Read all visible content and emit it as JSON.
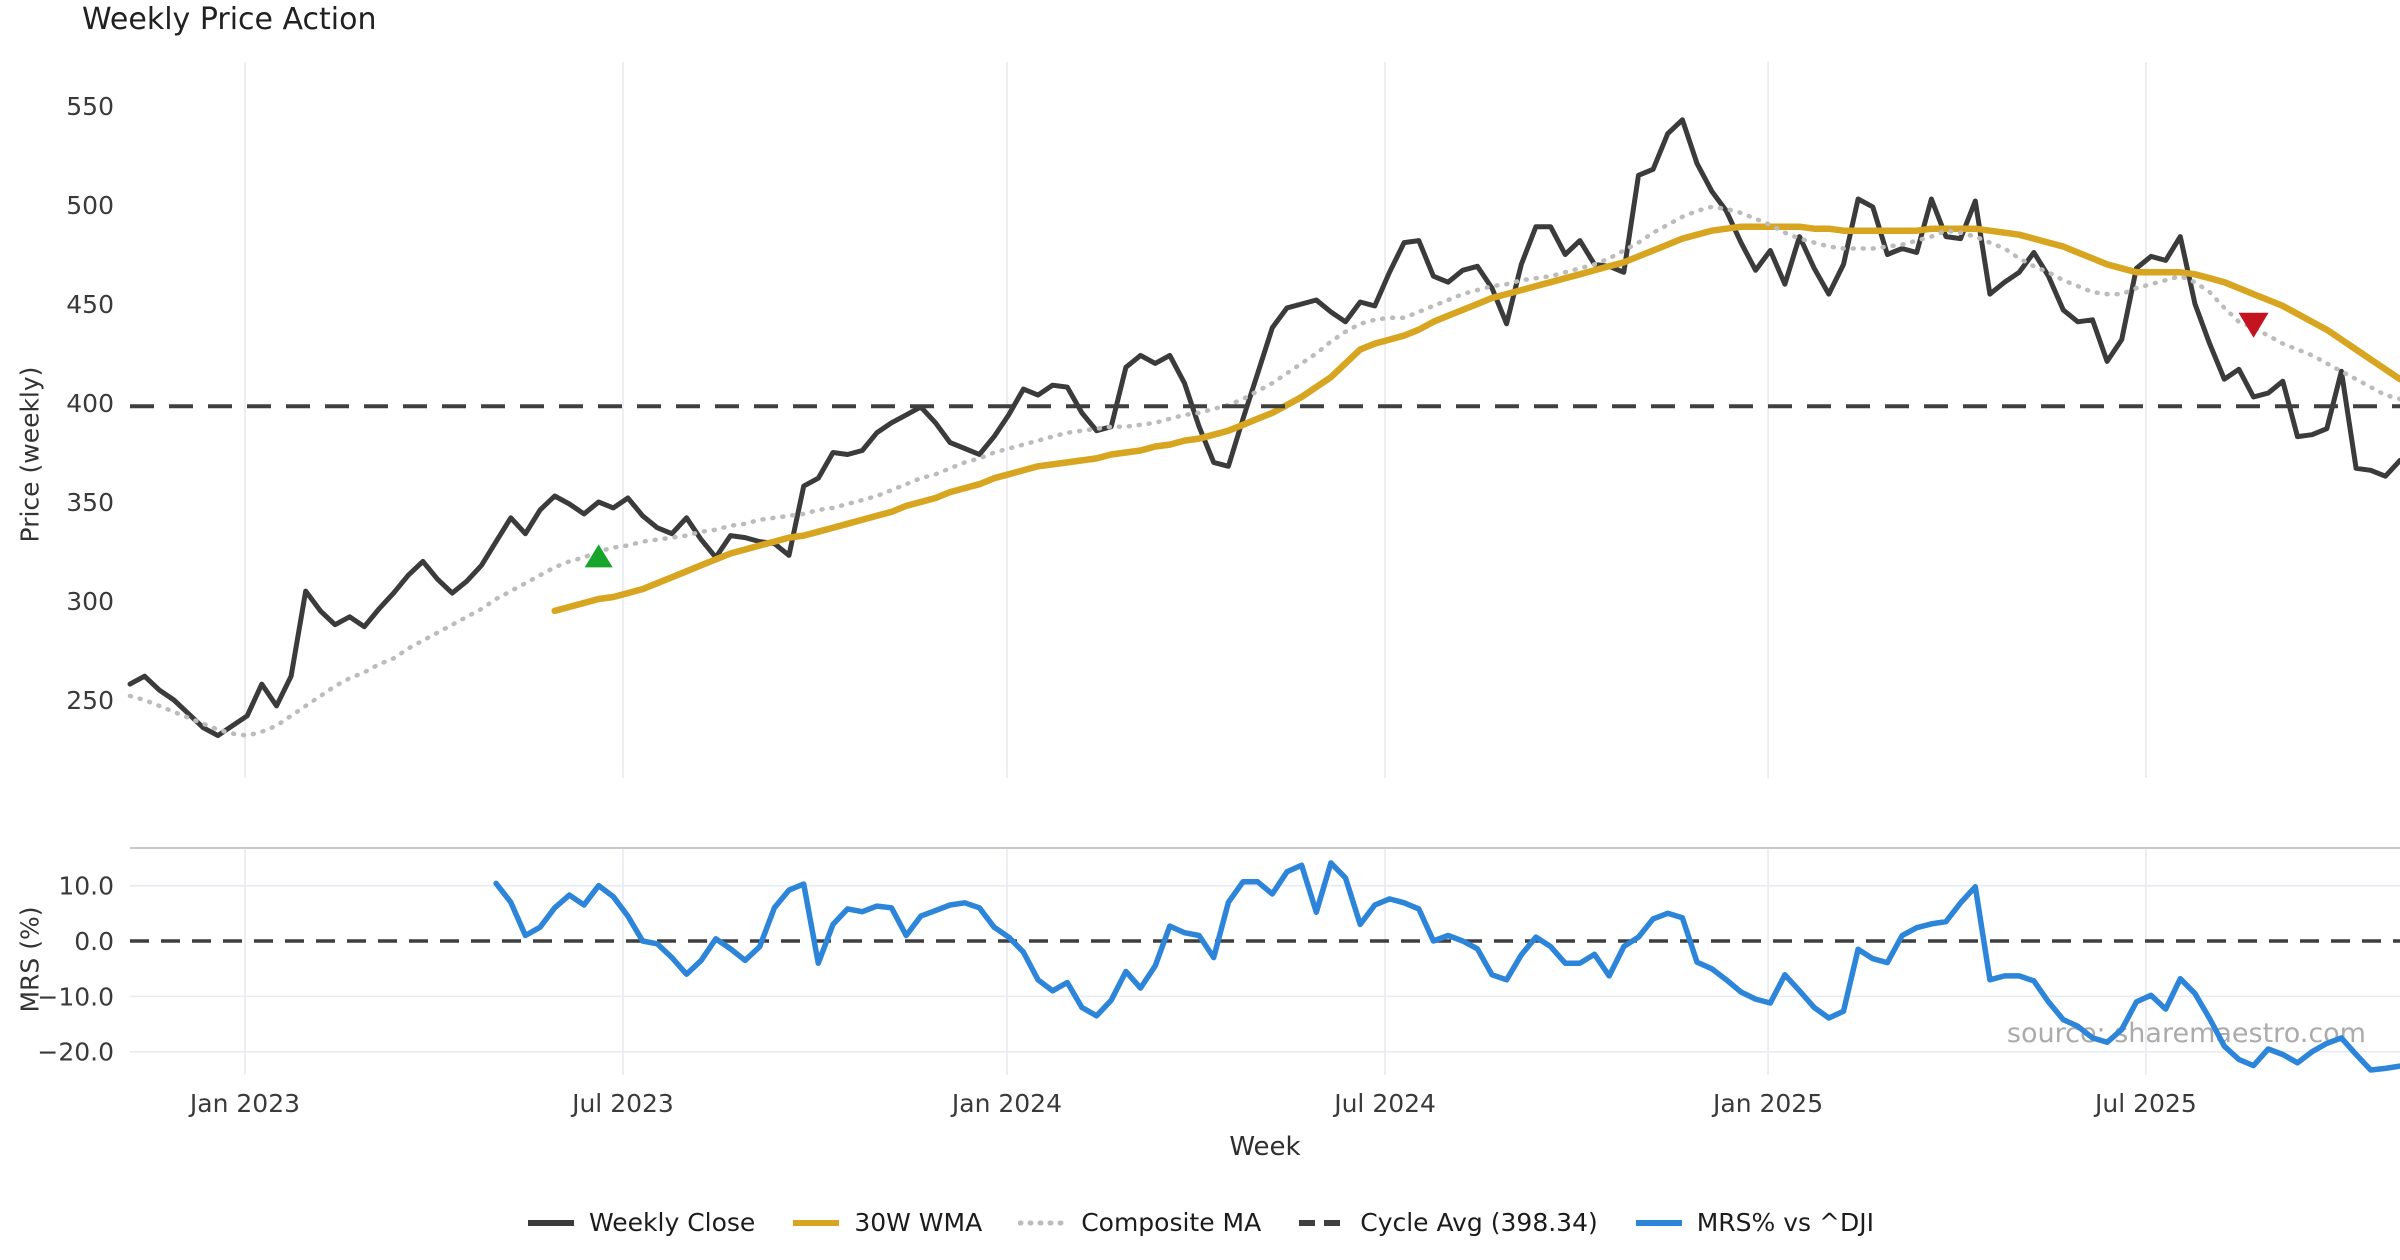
{
  "chart_data": {
    "type": "line",
    "title": "Weekly Price Action",
    "xlabel": "Week",
    "source_text": "source: sharemaestro.com",
    "x_ticks": [
      {
        "label": "Jan 2023",
        "week": 7.85
      },
      {
        "label": "Jul 2023",
        "week": 33.66
      },
      {
        "label": "Jan 2024",
        "week": 59.88
      },
      {
        "label": "Jul 2024",
        "week": 85.7
      },
      {
        "label": "Jan 2025",
        "week": 111.85
      },
      {
        "label": "Jul 2025",
        "week": 137.65
      }
    ],
    "weeks_total": 156,
    "panels": [
      {
        "id": "price",
        "ylabel": "Price (weekly)",
        "ylim": [
          210.6,
          572.2
        ],
        "yticks": [
          {
            "label": "250",
            "value": 250
          },
          {
            "label": "300",
            "value": 300
          },
          {
            "label": "350",
            "value": 350
          },
          {
            "label": "400",
            "value": 400
          },
          {
            "label": "450",
            "value": 450
          },
          {
            "label": "500",
            "value": 500
          },
          {
            "label": "550",
            "value": 550
          }
        ],
        "grid": "vertical"
      },
      {
        "id": "mrs",
        "ylabel": "MRS (%)",
        "ylim": [
          -24.2,
          16.8
        ],
        "yticks": [
          {
            "label": "10.0",
            "value": 10
          },
          {
            "label": "0.0",
            "value": 0
          },
          {
            "label": "−10.0",
            "value": -10
          },
          {
            "label": "−20.0",
            "value": -20
          }
        ],
        "grid": "both",
        "zero_line_dashed": true,
        "top_spine": true
      }
    ],
    "series": [
      {
        "name": "Weekly Close",
        "panel": "price",
        "color": "#3b3b3b",
        "width": 5,
        "style": "solid",
        "start_week": 0,
        "values": [
          258,
          262,
          255,
          250,
          243,
          236,
          232,
          237,
          242,
          258,
          247,
          262,
          305,
          295,
          288,
          292,
          287,
          296,
          304,
          313,
          320,
          311,
          304,
          310,
          318,
          330,
          342,
          334,
          346,
          353,
          349,
          344,
          350,
          347,
          352,
          343,
          337,
          334,
          342,
          331,
          322,
          333,
          332,
          330,
          329,
          323,
          358,
          362,
          375,
          374,
          376,
          385,
          390,
          394,
          398,
          390,
          380,
          377,
          374,
          383,
          394,
          407,
          404,
          409,
          408,
          395,
          386,
          388,
          418,
          424,
          420,
          424,
          410,
          388,
          370,
          368,
          392,
          415,
          438,
          448,
          450,
          452,
          446,
          441,
          451,
          449,
          466,
          481,
          482,
          464,
          461,
          467,
          469,
          458,
          440,
          470,
          489,
          489,
          475,
          482,
          470,
          469,
          466,
          515,
          518,
          536,
          543,
          521,
          507,
          497,
          481,
          467,
          477,
          460,
          484,
          468,
          455,
          470,
          503,
          499,
          475,
          478,
          476,
          503,
          484,
          483,
          502,
          455,
          461,
          466,
          476,
          464,
          447,
          441,
          442,
          421,
          432,
          468,
          474,
          472,
          484,
          450,
          430,
          412,
          417,
          403,
          405,
          411,
          383,
          384,
          387,
          416,
          367,
          366,
          363,
          371
        ]
      },
      {
        "name": "30W WMA",
        "panel": "price",
        "color": "#d7a520",
        "width": 6.5,
        "style": "solid",
        "start_week": 29,
        "values": [
          295,
          297,
          299,
          301,
          302,
          304,
          306,
          309,
          312,
          315,
          318,
          321,
          324,
          326,
          328,
          330,
          332,
          333,
          335,
          337,
          339,
          341,
          343,
          345,
          348,
          350,
          352,
          355,
          357,
          359,
          362,
          364,
          366,
          368,
          369,
          370,
          371,
          372,
          374,
          375,
          376,
          378,
          379,
          381,
          382,
          384,
          386,
          389,
          392,
          395,
          399,
          403,
          408,
          413,
          420,
          427,
          430,
          432,
          434,
          437,
          441,
          444,
          447,
          450,
          453,
          455,
          457,
          459,
          461,
          463,
          465,
          467,
          469,
          471,
          474,
          477,
          480,
          483,
          485,
          487,
          488,
          489,
          489,
          489,
          489,
          489,
          488,
          488,
          487,
          487,
          487,
          487,
          487,
          487,
          488,
          488,
          488,
          488,
          487,
          486,
          485,
          483,
          481,
          479,
          476,
          473,
          470,
          468,
          466,
          466,
          466,
          466,
          465,
          463,
          461,
          458,
          455,
          452,
          449,
          445,
          441,
          437,
          432,
          427,
          422,
          417,
          412
        ]
      },
      {
        "name": "Composite MA",
        "panel": "price",
        "color": "#bcbcbc",
        "width": 4.5,
        "style": "dotted",
        "start_week": 0,
        "values": [
          252,
          250,
          247,
          244,
          241,
          238,
          235,
          233,
          232,
          234,
          237,
          242,
          247,
          252,
          257,
          261,
          264,
          268,
          271,
          276,
          280,
          284,
          288,
          292,
          296,
          301,
          305,
          309,
          313,
          317,
          320,
          322,
          325,
          327,
          328,
          330,
          331,
          332,
          333,
          335,
          336,
          338,
          339,
          341,
          342,
          343,
          344,
          346,
          347,
          349,
          351,
          353,
          356,
          359,
          362,
          364,
          367,
          370,
          372,
          375,
          377,
          379,
          381,
          383,
          385,
          386,
          387,
          388,
          388,
          389,
          390,
          392,
          394,
          395,
          397,
          399,
          402,
          406,
          410,
          415,
          420,
          425,
          431,
          436,
          440,
          442,
          443,
          443,
          446,
          449,
          452,
          455,
          457,
          459,
          460,
          462,
          463,
          464,
          466,
          468,
          470,
          473,
          477,
          481,
          486,
          490,
          494,
          497,
          499,
          498,
          496,
          493,
          490,
          486,
          483,
          481,
          479,
          478,
          478,
          478,
          479,
          480,
          482,
          484,
          487,
          486,
          484,
          481,
          478,
          473,
          469,
          466,
          462,
          459,
          456,
          455,
          455,
          458,
          460,
          462,
          464,
          461,
          456,
          448,
          441,
          438,
          434,
          430,
          427,
          424,
          420,
          416,
          412,
          408,
          404,
          402
        ]
      },
      {
        "name": "Cycle Avg (398.34)",
        "panel": "price",
        "color": "#3f3f3f",
        "width": 4,
        "style": "dashed",
        "constant": 398.34
      },
      {
        "name": "MRS% vs ^DJI",
        "panel": "mrs",
        "color": "#2d85da",
        "width": 5.5,
        "style": "solid",
        "start_week": 25,
        "values": [
          10.4,
          7,
          1,
          2.5,
          6,
          8.3,
          6.5,
          10,
          8,
          4.5,
          0,
          -0.5,
          -3,
          -6,
          -3.5,
          0.4,
          -1.4,
          -3.5,
          -1,
          6,
          9.2,
          10.3,
          -4,
          3,
          5.8,
          5.3,
          6.3,
          6,
          1,
          4.5,
          5.5,
          6.5,
          6.9,
          6,
          2.5,
          0.7,
          -2,
          -7,
          -9,
          -7.5,
          -12,
          -13.5,
          -10.7,
          -5.5,
          -8.5,
          -4.5,
          2.7,
          1.5,
          1,
          -3,
          7,
          10.7,
          10.7,
          8.5,
          12.5,
          13.7,
          5.2,
          14.1,
          11.4,
          3,
          6.5,
          7.6,
          6.9,
          5.8,
          0,
          1,
          0,
          -1.4,
          -6.1,
          -7,
          -2.5,
          0.7,
          -1,
          -4,
          -4,
          -2.4,
          -6.3,
          -1,
          0.7,
          4,
          5,
          4.2,
          -3.8,
          -5,
          -7,
          -9.2,
          -10.5,
          -11.2,
          -6.1,
          -9,
          -12,
          -13.9,
          -12.7,
          -1.5,
          -3.2,
          -3.9,
          1,
          2.4,
          3.1,
          3.5,
          6.9,
          9.8,
          -7,
          -6.3,
          -6.3,
          -7.2,
          -11,
          -14.2,
          -15.4,
          -17.5,
          -18.3,
          -16,
          -11,
          -9.8,
          -12.3,
          -6.8,
          -9.5,
          -14,
          -19,
          -21.4,
          -22.5,
          -19.5,
          -20.5,
          -22,
          -20,
          -18.5,
          -17.5,
          -20.5,
          -23.3,
          -23,
          -22.6
        ]
      }
    ],
    "markers": [
      {
        "shape": "triangle-up",
        "name": "buy-signal",
        "color": "#16a52a",
        "week": 32,
        "price": 322
      },
      {
        "shape": "triangle-down",
        "name": "sell-signal",
        "color": "#c31420",
        "week": 145,
        "price": 440
      }
    ],
    "legend": [
      {
        "label": "Weekly Close",
        "color": "#3b3b3b",
        "style": "solid"
      },
      {
        "label": "30W WMA",
        "color": "#d7a520",
        "style": "solid"
      },
      {
        "label": "Composite MA",
        "color": "#bcbcbc",
        "style": "dotted"
      },
      {
        "label": "Cycle Avg (398.34)",
        "color": "#3f3f3f",
        "style": "dashed"
      },
      {
        "label": "MRS% vs ^DJI",
        "color": "#2d85da",
        "style": "solid"
      }
    ]
  }
}
